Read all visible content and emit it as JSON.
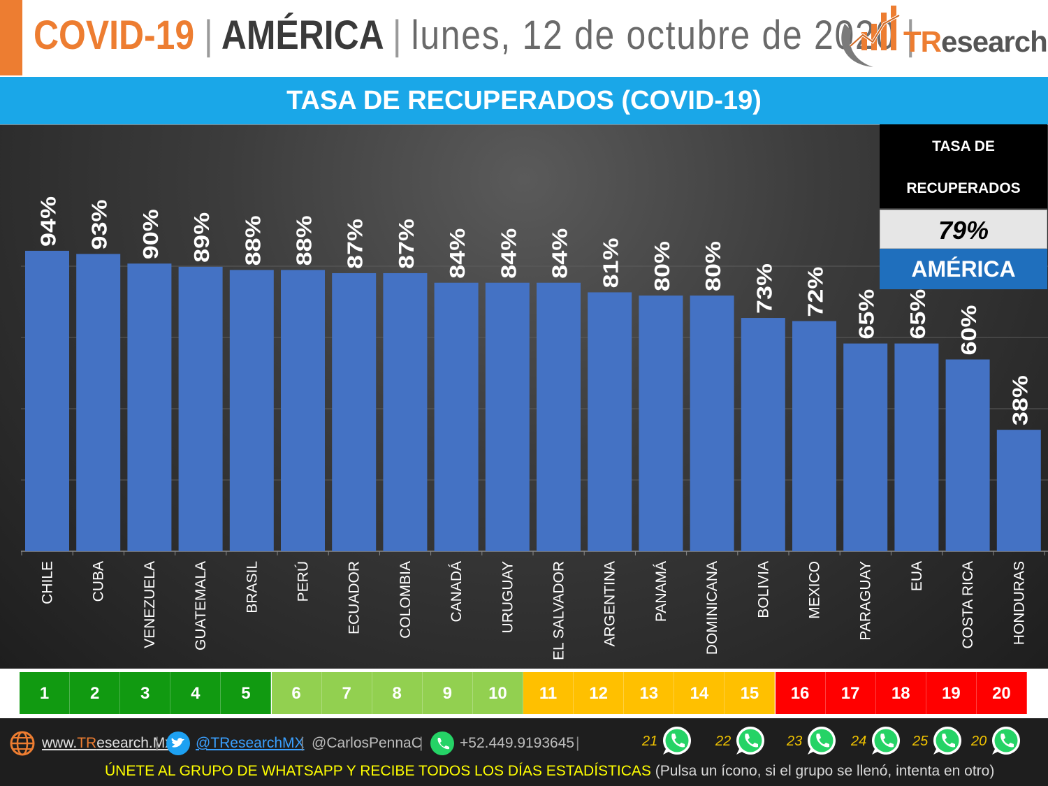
{
  "header": {
    "covid": "COVID-19",
    "sep1": "|",
    "region": "AMÉRICA",
    "sep2": "|",
    "date": "lunes, 12 de octubre de 2020",
    "sep3": "|",
    "logo_tr": "TR",
    "logo_rest": "esearch"
  },
  "banner": {
    "title": "TASA DE RECUPERADOS (COVID-19)"
  },
  "summary": {
    "line1": "TASA DE",
    "line2": "RECUPERADOS",
    "value": "79%",
    "region": "AMÉRICA"
  },
  "chart_data": {
    "type": "bar",
    "categories": [
      "CHILE",
      "CUBA",
      "VENEZUELA",
      "GUATEMALA",
      "BRASIL",
      "PERÚ",
      "ECUADOR",
      "COLOMBIA",
      "CANADÁ",
      "URUGUAY",
      "EL SALVADOR",
      "ARGENTINA",
      "PANAMÁ",
      "DOMINICANA",
      "BOLIVIA",
      "MEXICO",
      "PARAGUAY",
      "EUA",
      "COSTA RICA",
      "HONDURAS"
    ],
    "values": [
      94,
      93,
      90,
      89,
      88,
      88,
      87,
      87,
      84,
      84,
      84,
      81,
      80,
      80,
      73,
      72,
      65,
      65,
      60,
      38
    ],
    "data_labels": [
      "94%",
      "93%",
      "90%",
      "89%",
      "88%",
      "88%",
      "87%",
      "87%",
      "84%",
      "84%",
      "84%",
      "81%",
      "80%",
      "80%",
      "73%",
      "72%",
      "65%",
      "65%",
      "60%",
      "38%"
    ],
    "title": "TASA DE RECUPERADOS (COVID-19)",
    "ylim": [
      0,
      100
    ],
    "grid": true,
    "bar_color": "#4472c4"
  },
  "ranks": {
    "labels": [
      "1",
      "2",
      "3",
      "4",
      "5",
      "6",
      "7",
      "8",
      "9",
      "10",
      "11",
      "12",
      "13",
      "14",
      "15",
      "16",
      "17",
      "18",
      "19",
      "20"
    ],
    "colors": [
      "#119a11",
      "#119a11",
      "#119a11",
      "#119a11",
      "#119a11",
      "#92d050",
      "#92d050",
      "#92d050",
      "#92d050",
      "#92d050",
      "#ffc000",
      "#ffc000",
      "#ffc000",
      "#ffc000",
      "#ffc000",
      "#ff0000",
      "#ff0000",
      "#ff0000",
      "#ff0000",
      "#ff0000"
    ]
  },
  "footer": {
    "website_pre": "www.",
    "website_tr": "TR",
    "website_post": "esearch.Mx",
    "sep_a": "|",
    "twitter": "@TResearchMX",
    "sep_b": "|",
    "personal": "@CarlosPennaC",
    "sep_c": "|",
    "phone": "+52.449.9193645",
    "sep_d": "|",
    "whatsapp_groups": [
      "21",
      "22",
      "23",
      "24",
      "25",
      "20"
    ],
    "cta_main": "ÚNETE AL GRUPO DE WHATSAPP Y RECIBE TODOS LOS DÍAS ESTADÍSTICAS",
    "cta_note": "(Pulsa un ícono, si el grupo se llenó, intenta en otro)",
    "icons": [
      "globe-icon",
      "twitter-icon",
      "whatsapp-icon"
    ]
  }
}
